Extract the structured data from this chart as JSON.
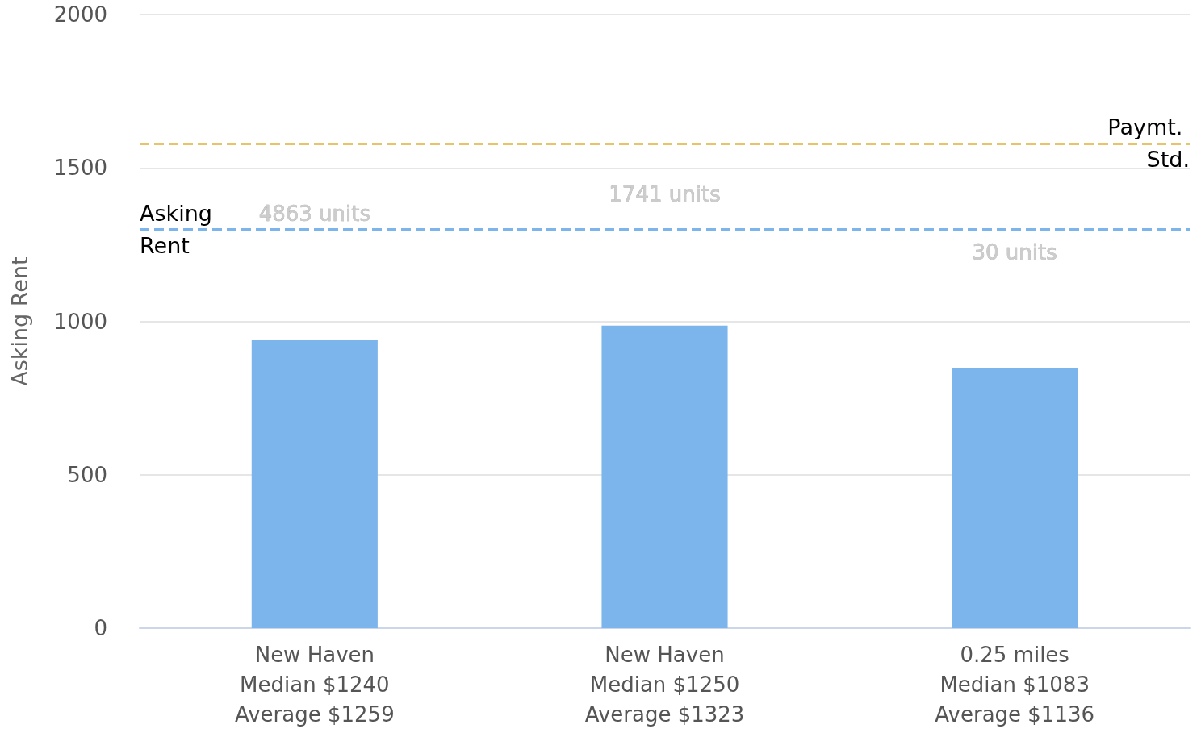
{
  "chart_data": {
    "type": "bar",
    "ylabel": "Asking Rent",
    "categories": [
      "New Haven\nMedian $1240\nAverage $1259",
      "New Haven\nMedian $1250\nAverage $1323",
      "0.25 miles\nMedian $1083\nAverage $1136"
    ],
    "values": [
      938,
      986,
      846
    ],
    "color": "#7cb5ec",
    "annotations": [
      "4863 units",
      "1741 units",
      "30 units"
    ],
    "ylim": [
      0,
      2000
    ],
    "yticks": [
      0,
      500,
      1000,
      1500,
      2000
    ],
    "grid": "y",
    "ref_lines": [
      {
        "axis": "y",
        "value": 1300,
        "label": "Asking Rent",
        "color": "#7cb5ec",
        "line_style": "dashed"
      },
      {
        "axis": "y",
        "value": 1580,
        "label": "Paymt. Std.",
        "color": "#e8c36a",
        "line_style": "dashed"
      }
    ]
  }
}
